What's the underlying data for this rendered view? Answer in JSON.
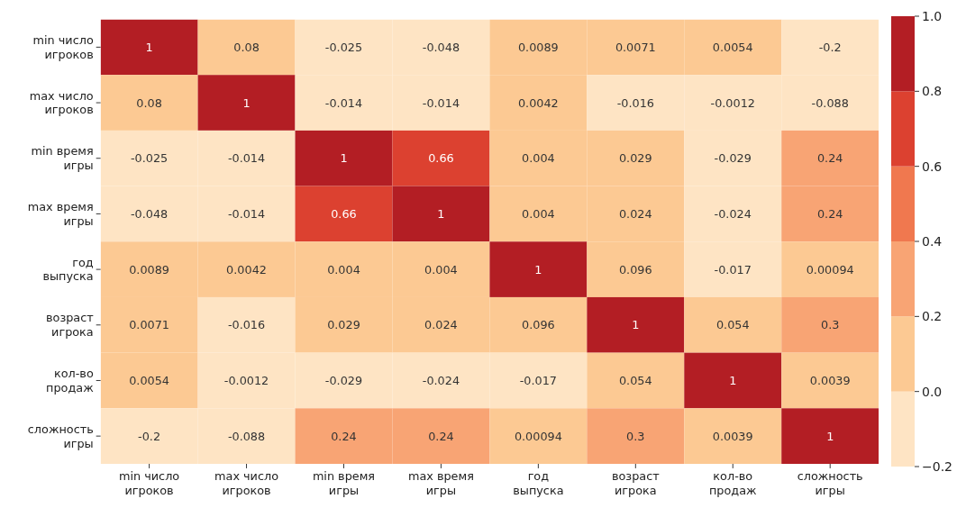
{
  "chart_data": {
    "type": "heatmap",
    "categories": [
      "min число игроков",
      "max число игроков",
      "min время игры",
      "max время игры",
      "год выпуска",
      "возраст игрока",
      "кол-во продаж",
      "сложность игры"
    ],
    "y_categories": [
      "min число игроков",
      "max число игроков",
      "min время игры",
      "max время игры",
      "год выпуска",
      "возраст игрока",
      "кол-во продаж",
      "сложность игры"
    ],
    "cells": [
      [
        1,
        0.08,
        -0.025,
        -0.048,
        0.0089,
        0.0071,
        0.0054,
        -0.2
      ],
      [
        0.08,
        1,
        -0.014,
        -0.014,
        0.0042,
        -0.016,
        -0.0012,
        -0.088
      ],
      [
        -0.025,
        -0.014,
        1,
        0.66,
        0.004,
        0.029,
        -0.029,
        0.24
      ],
      [
        -0.048,
        -0.014,
        0.66,
        1,
        0.004,
        0.024,
        -0.024,
        0.24
      ],
      [
        0.0089,
        0.0042,
        0.004,
        0.004,
        1,
        0.096,
        -0.017,
        0.00094
      ],
      [
        0.0071,
        -0.016,
        0.029,
        0.024,
        0.096,
        1,
        0.054,
        0.3
      ],
      [
        0.0054,
        -0.0012,
        -0.029,
        -0.024,
        -0.017,
        0.054,
        1,
        0.0039
      ],
      [
        -0.2,
        -0.088,
        0.24,
        0.24,
        0.00094,
        0.3,
        0.0039,
        1
      ]
    ],
    "colors": [
      "#fee4c4",
      "#fcc993",
      "#f8a474",
      "#f0784f",
      "#dc4130",
      "#b31e24"
    ],
    "clim": [
      -0.2,
      1.0
    ],
    "cticks": [
      {
        "value": -0.2,
        "label": "−0.2"
      },
      {
        "value": 0,
        "label": "0.0"
      },
      {
        "value": 0.2,
        "label": "0.2"
      },
      {
        "value": 0.4,
        "label": "0.4"
      },
      {
        "value": 0.6,
        "label": "0.6"
      },
      {
        "value": 0.8,
        "label": "0.8"
      },
      {
        "value": 1.0,
        "label": "1.0"
      }
    ],
    "data_labels": true
  }
}
